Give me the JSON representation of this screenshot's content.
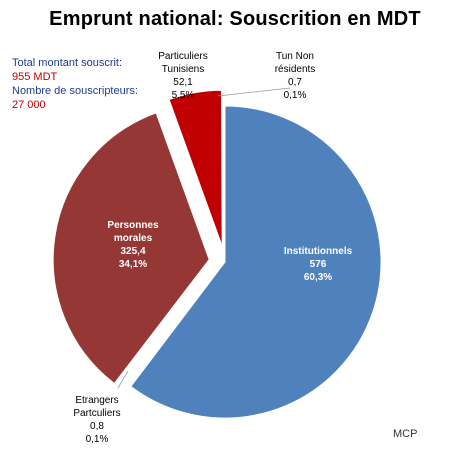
{
  "chart_data": {
    "type": "pie",
    "title": "Emprunt national: Souscrition en MDT",
    "unit": "MDT",
    "slices": [
      {
        "name_lines": [
          "Institutionnels"
        ],
        "value": "576",
        "pct": "60,3%",
        "v": 576,
        "color": "#4F81BD",
        "label_color": "#ffffff",
        "exploded": false
      },
      {
        "name_lines": [
          "Etrangers",
          "Partculiers"
        ],
        "value": "0,8",
        "pct": "0,1%",
        "v": 0.8,
        "color": "#4F81BD",
        "label_color": "#000000",
        "exploded": true
      },
      {
        "name_lines": [
          "Personnes",
          "morales"
        ],
        "value": "325,4",
        "pct": "34,1%",
        "v": 325.4,
        "color": "#953735",
        "label_color": "#ffffff",
        "exploded": true
      },
      {
        "name_lines": [
          "Particuliers",
          "Tunisiens"
        ],
        "value": "52,1",
        "pct": "5,5%",
        "v": 52.1,
        "color": "#C00000",
        "label_color": "#000000",
        "exploded": true
      },
      {
        "name_lines": [
          "Tun Non",
          "résidents"
        ],
        "value": "0,7",
        "pct": "0,1%",
        "v": 0.7,
        "color": "#C00000",
        "label_color": "#000000",
        "exploded": false
      }
    ]
  },
  "summary": {
    "total_label": "Total montant souscrit:",
    "total_value": "955  MDT",
    "subscribers_label": "Nombre de souscripteurs:",
    "subscribers_value": "27 000"
  },
  "footer": "MCP"
}
